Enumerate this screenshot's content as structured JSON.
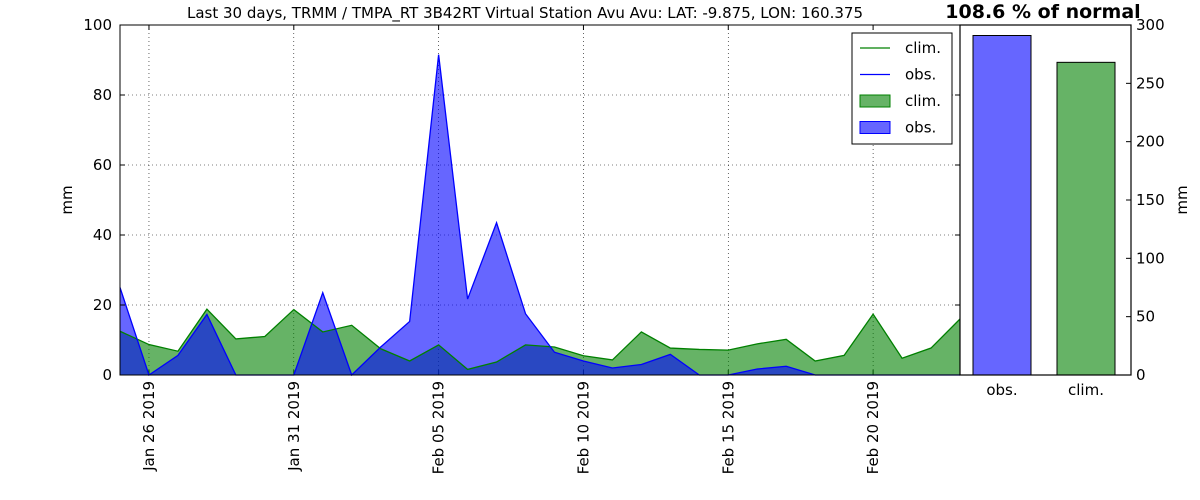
{
  "title": "Last 30 days, TRMM / TMPA_RT 3B42RT Virtual Station Avu Avu: LAT: -9.875, LON: 160.375",
  "percent_of_normal": "108.6 % of normal",
  "colors": {
    "clim": "#008000",
    "obs": "#0000ff",
    "clim_fill": "#66b266",
    "obs_fill": "#6666ff",
    "overlap": "#2b46c1"
  },
  "legend_labels": [
    {
      "kind": "line",
      "series": "clim",
      "label": "clim."
    },
    {
      "kind": "line",
      "series": "obs",
      "label": "obs."
    },
    {
      "kind": "patch",
      "series": "clim",
      "label": "clim."
    },
    {
      "kind": "patch",
      "series": "obs",
      "label": "obs."
    }
  ],
  "chart_data": [
    {
      "type": "area",
      "x": [
        "2019-01-25",
        "2019-01-26",
        "2019-01-27",
        "2019-01-28",
        "2019-01-29",
        "2019-01-30",
        "2019-01-31",
        "2019-02-01",
        "2019-02-02",
        "2019-02-03",
        "2019-02-04",
        "2019-02-05",
        "2019-02-06",
        "2019-02-07",
        "2019-02-08",
        "2019-02-09",
        "2019-02-10",
        "2019-02-11",
        "2019-02-12",
        "2019-02-13",
        "2019-02-14",
        "2019-02-15",
        "2019-02-16",
        "2019-02-17",
        "2019-02-18",
        "2019-02-19",
        "2019-02-20",
        "2019-02-21",
        "2019-02-22",
        "2019-02-23"
      ],
      "series": [
        {
          "name": "clim.",
          "values": [
            12.5,
            8.7,
            6.8,
            18.8,
            10.3,
            11.0,
            18.7,
            12.3,
            14.2,
            7.5,
            4.0,
            8.6,
            1.6,
            3.7,
            8.6,
            8.0,
            5.5,
            4.3,
            12.3,
            7.7,
            7.3,
            7.1,
            8.9,
            10.2,
            4.0,
            5.6,
            17.4,
            4.8,
            7.7,
            16.0
          ]
        },
        {
          "name": "obs.",
          "values": [
            25.0,
            0,
            5.6,
            17.3,
            0,
            0,
            0,
            23.5,
            0,
            8.0,
            15.3,
            91.5,
            21.7,
            43.5,
            17.5,
            6.5,
            4.0,
            2.0,
            3.0,
            5.9,
            0,
            0,
            1.7,
            2.5,
            0,
            0,
            0,
            0,
            0,
            0
          ]
        }
      ],
      "xticks": [
        "Jan 26 2019",
        "Jan 31 2019",
        "Feb 05 2019",
        "Feb 10 2019",
        "Feb 15 2019",
        "Feb 20 2019"
      ],
      "ylabel": "mm",
      "ylim": [
        0,
        100
      ],
      "yticks": [
        0,
        20,
        40,
        60,
        80,
        100
      ],
      "grid": true,
      "legend": "top-right"
    },
    {
      "type": "bar",
      "categories": [
        "obs.",
        "clim."
      ],
      "values": [
        291,
        268
      ],
      "ylabel": "mm",
      "ylim": [
        0,
        300
      ],
      "yticks": [
        0,
        50,
        100,
        150,
        200,
        250,
        300
      ],
      "ytick_side": "right"
    }
  ]
}
